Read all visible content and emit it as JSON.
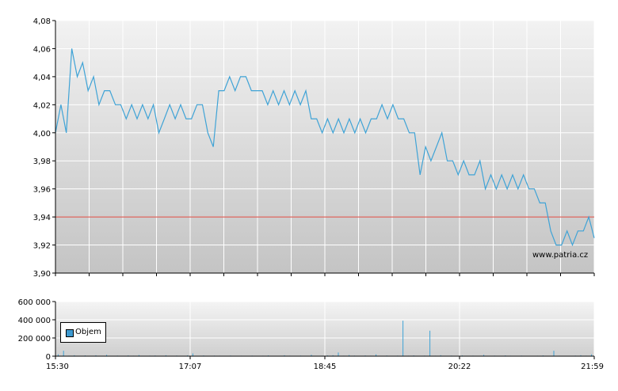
{
  "chart_data": [
    {
      "type": "line",
      "ylim": [
        3.9,
        4.08
      ],
      "y_ticks": [
        "4,08",
        "4,06",
        "4,04",
        "4,02",
        "4,00",
        "3,98",
        "3,96",
        "3,94",
        "3,92",
        "3,90"
      ],
      "x_ticks": [
        "15:30",
        "17:07",
        "18:45",
        "20:22",
        "21:59"
      ],
      "grid": true,
      "reference_line": 3.94,
      "colors": {
        "line": "#3fa3d6",
        "reference": "#d9433a"
      },
      "watermark": "www.patria.cz",
      "price": [
        4.0,
        4.02,
        4.0,
        4.06,
        4.04,
        4.05,
        4.03,
        4.04,
        4.02,
        4.03,
        4.03,
        4.02,
        4.02,
        4.01,
        4.02,
        4.01,
        4.02,
        4.01,
        4.02,
        4.0,
        4.01,
        4.02,
        4.01,
        4.02,
        4.01,
        4.01,
        4.02,
        4.02,
        4.0,
        3.99,
        4.03,
        4.03,
        4.04,
        4.03,
        4.04,
        4.04,
        4.03,
        4.03,
        4.03,
        4.02,
        4.03,
        4.02,
        4.03,
        4.02,
        4.03,
        4.02,
        4.03,
        4.01,
        4.01,
        4.0,
        4.01,
        4.0,
        4.01,
        4.0,
        4.01,
        4.0,
        4.01,
        4.0,
        4.01,
        4.01,
        4.02,
        4.01,
        4.02,
        4.01,
        4.01,
        4.0,
        4.0,
        3.97,
        3.99,
        3.98,
        3.99,
        4.0,
        3.98,
        3.98,
        3.97,
        3.98,
        3.97,
        3.97,
        3.98,
        3.96,
        3.97,
        3.96,
        3.97,
        3.96,
        3.97,
        3.96,
        3.97,
        3.96,
        3.96,
        3.95,
        3.95,
        3.93,
        3.92,
        3.92,
        3.93,
        3.92,
        3.93,
        3.93,
        3.94,
        3.925
      ],
      "volume_series_name": "Objem",
      "volume_ylim": [
        0,
        600000
      ],
      "volume_y_ticks": [
        "600 000",
        "400 000",
        "200 000",
        "0"
      ],
      "volume": [
        20000,
        60000,
        5000,
        10000,
        3000,
        8000,
        2000,
        10000,
        4000,
        15000,
        3000,
        6000,
        2000,
        8000,
        5000,
        12000,
        3000,
        5000,
        7000,
        4000,
        10000,
        3000,
        6000,
        2000,
        9000,
        30000,
        4000,
        8000,
        3000,
        6000,
        5000,
        3000,
        7000,
        2000,
        5000,
        4000,
        6000,
        3000,
        5000,
        8000,
        4000,
        3000,
        10000,
        5000,
        2000,
        6000,
        4000,
        15000,
        3000,
        5000,
        8000,
        10000,
        40000,
        5000,
        12000,
        6000,
        3000,
        8000,
        5000,
        20000,
        3000,
        7000,
        4000,
        6000,
        390000,
        5000,
        8000,
        3000,
        6000,
        280000,
        5000,
        10000,
        3000,
        6000,
        4000,
        8000,
        3000,
        5000,
        2000,
        15000,
        4000,
        6000,
        3000,
        8000,
        5000,
        3000,
        6000,
        4000,
        3000,
        5000,
        8000,
        3000,
        60000,
        5000,
        4000,
        3000,
        6000,
        10000,
        5000,
        20000
      ]
    }
  ]
}
